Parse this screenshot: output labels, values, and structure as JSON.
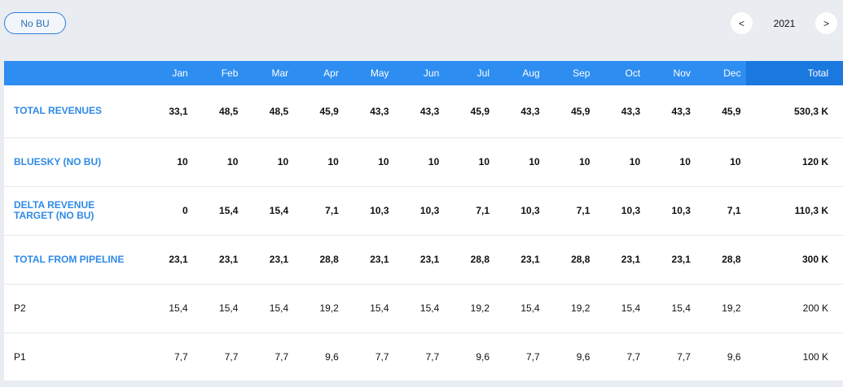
{
  "toolbar": {
    "bu_label": "No BU",
    "prev_label": "<",
    "year": "2021",
    "next_label": ">"
  },
  "table": {
    "headers": [
      "",
      "Jan",
      "Feb",
      "Mar",
      "Apr",
      "May",
      "Jun",
      "Jul",
      "Aug",
      "Sep",
      "Oct",
      "Nov",
      "Dec",
      "Total"
    ],
    "rows": [
      {
        "label": "TOTAL REVENUES",
        "style": "bold",
        "values": [
          "33,1",
          "48,5",
          "48,5",
          "45,9",
          "43,3",
          "43,3",
          "45,9",
          "43,3",
          "45,9",
          "43,3",
          "43,3",
          "45,9"
        ],
        "total": "530,3 K"
      },
      {
        "label": "BLUESKY (NO BU)",
        "style": "bold",
        "values": [
          "10",
          "10",
          "10",
          "10",
          "10",
          "10",
          "10",
          "10",
          "10",
          "10",
          "10",
          "10"
        ],
        "total": "120 K"
      },
      {
        "label": "DELTA REVENUE TARGET (NO BU)",
        "style": "bold",
        "values": [
          "0",
          "15,4",
          "15,4",
          "7,1",
          "10,3",
          "10,3",
          "7,1",
          "10,3",
          "7,1",
          "10,3",
          "10,3",
          "7,1"
        ],
        "total": "110,3 K"
      },
      {
        "label": "TOTAL FROM PIPELINE",
        "style": "bold",
        "values": [
          "23,1",
          "23,1",
          "23,1",
          "28,8",
          "23,1",
          "23,1",
          "28,8",
          "23,1",
          "28,8",
          "23,1",
          "23,1",
          "28,8"
        ],
        "total": "300 K"
      },
      {
        "label": "P2",
        "style": "plain",
        "values": [
          "15,4",
          "15,4",
          "15,4",
          "19,2",
          "15,4",
          "15,4",
          "19,2",
          "15,4",
          "19,2",
          "15,4",
          "15,4",
          "19,2"
        ],
        "total": "200 K"
      },
      {
        "label": "P1",
        "style": "plain",
        "values": [
          "7,7",
          "7,7",
          "7,7",
          "9,6",
          "7,7",
          "7,7",
          "9,6",
          "7,7",
          "9,6",
          "7,7",
          "7,7",
          "9,6"
        ],
        "total": "100 K"
      }
    ]
  },
  "colors": {
    "header_bg": "#2d8df0",
    "header_total_bg": "#1b78de",
    "accent_label": "#2f8ae6",
    "page_bg": "#e9ecf1"
  }
}
